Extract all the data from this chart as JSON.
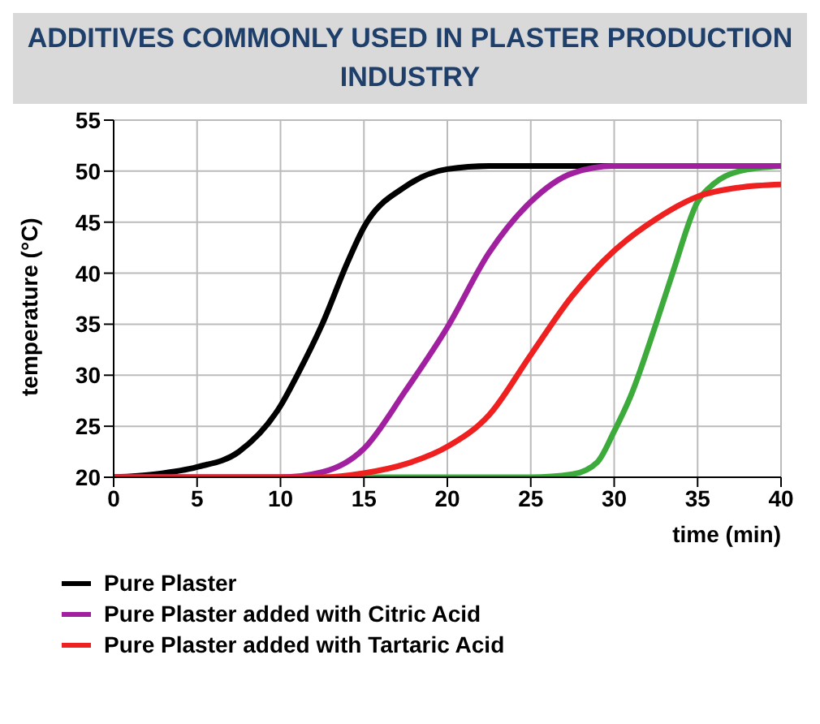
{
  "chart_data": {
    "type": "line",
    "title": "ADDITIVES COMMONLY USED IN PLASTER PRODUCTION INDUSTRY",
    "xlabel": "time (min)",
    "ylabel": "temperature (°C)",
    "xlim": [
      0,
      40
    ],
    "xticks": [
      0,
      5,
      10,
      15,
      20,
      25,
      30,
      35,
      40
    ],
    "ylim": [
      20,
      55
    ],
    "yticks": [
      20,
      25,
      30,
      35,
      40,
      45,
      50,
      55
    ],
    "grid": true,
    "legend": "bottom",
    "marker": "none",
    "line_style": "solid",
    "series": [
      {
        "name": "Pure Plaster",
        "color": "#000000",
        "x": [
          0,
          2.5,
          5,
          7.5,
          10,
          11,
          12.5,
          14,
          15,
          17.5,
          20,
          22.5,
          25,
          30
        ],
        "values": [
          20,
          20.3,
          21,
          22.5,
          27,
          30,
          35,
          41,
          44.5,
          48.5,
          50.2,
          50.5,
          50.5,
          50.5
        ]
      },
      {
        "color": "#3cab3c",
        "x": [
          0,
          25,
          27.5,
          29,
          30,
          31,
          32.5,
          33.5,
          35,
          36,
          37.5,
          40
        ],
        "values": [
          20,
          20,
          20.3,
          21.5,
          24.5,
          28,
          35,
          40,
          47,
          48.8,
          50,
          50.5
        ]
      },
      {
        "name": "Pure Plaster added with Citric Acid",
        "color": "#a0209f",
        "x": [
          0,
          10,
          12.5,
          15,
          17.5,
          20,
          22.5,
          25,
          27.5,
          30,
          40
        ],
        "values": [
          20,
          20,
          20.5,
          22.8,
          28.5,
          34.7,
          42,
          47,
          49.8,
          50.5,
          50.5
        ]
      },
      {
        "name": "Pure Plaster added with Tartaric Acid",
        "color": "#ee2020",
        "x": [
          0,
          12.5,
          15,
          17.5,
          20,
          22.5,
          25,
          27.5,
          30,
          32.5,
          35,
          37.5,
          40
        ],
        "values": [
          20,
          20,
          20.4,
          21.3,
          23,
          26.1,
          32,
          37.8,
          42.2,
          45.3,
          47.5,
          48.4,
          48.7
        ]
      }
    ]
  }
}
